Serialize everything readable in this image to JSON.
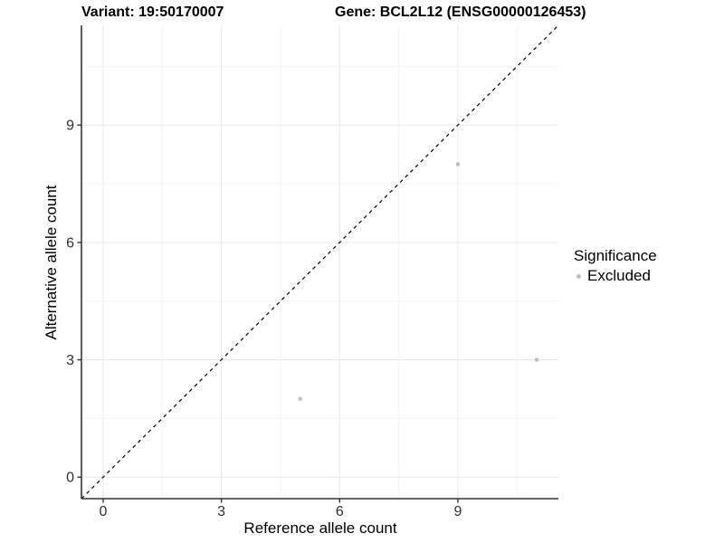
{
  "figure": {
    "title_variant": "Variant: 19:50170007",
    "title_gene": "Gene: BCL2L12 (ENSG00000126453)"
  },
  "legend": {
    "title": "Significance",
    "items": [
      {
        "label": "Excluded",
        "color": "#bdbdbd",
        "marker": "circle"
      }
    ]
  },
  "chart_data": {
    "type": "scatter",
    "xlabel": "Reference allele count",
    "ylabel": "Alternative allele count",
    "xlim": [
      -0.55,
      11.55
    ],
    "ylim": [
      -0.55,
      11.55
    ],
    "xticks": [
      0,
      3,
      6,
      9
    ],
    "yticks": [
      0,
      3,
      6,
      9
    ],
    "x_minor_ticks": [
      1.5,
      4.5,
      7.5,
      10.5
    ],
    "y_minor_ticks": [
      1.5,
      4.5,
      7.5,
      10.5
    ],
    "grid": "major+minor",
    "legend_position": "right",
    "series": [
      {
        "name": "Excluded",
        "color": "#bdbdbd",
        "points": [
          {
            "x": 5,
            "y": 2
          },
          {
            "x": 9,
            "y": 8
          },
          {
            "x": 11,
            "y": 3
          }
        ]
      }
    ],
    "reference_line": {
      "type": "identity",
      "style": "dashed",
      "color": "#000000"
    }
  },
  "colors": {
    "background": "#ffffff",
    "major_grid": "#e8e8e8",
    "minor_grid": "#f4f4f4",
    "axis_line": "#333333",
    "tick_text": "#303030",
    "title_text": "#000000"
  }
}
